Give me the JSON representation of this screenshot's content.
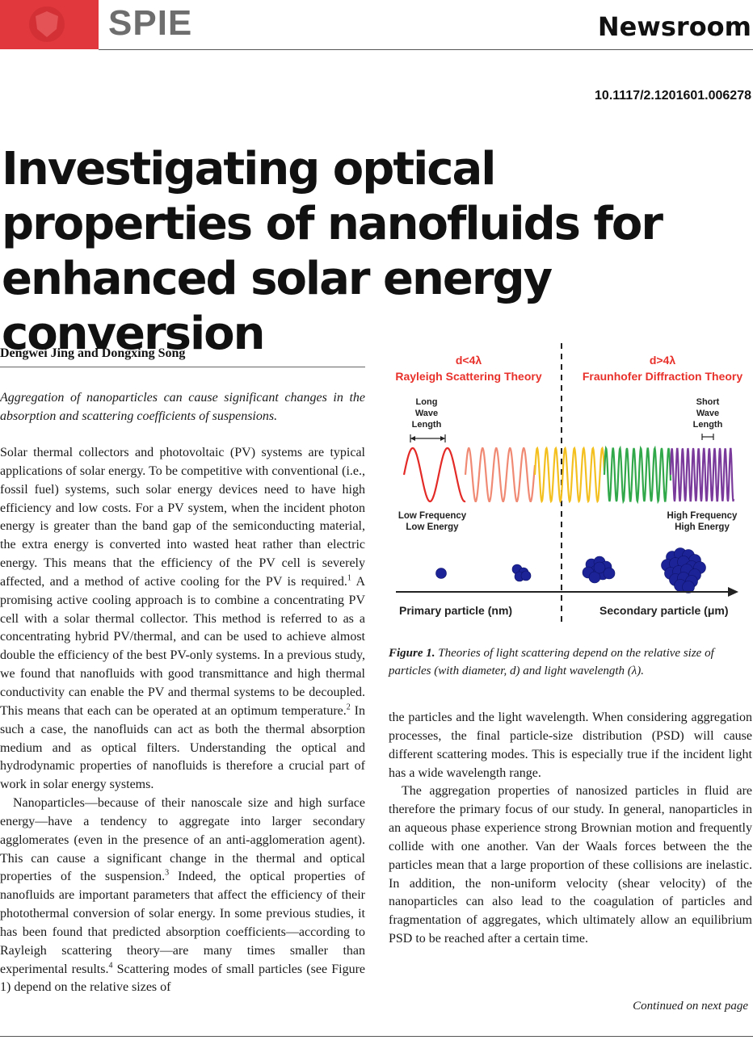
{
  "header": {
    "logo_text": "SPIE",
    "section": "Newsroom",
    "doi": "10.1117/2.1201601.006278",
    "brand_color": "#e0383c"
  },
  "article": {
    "title": "Investigating optical properties of nanofluids for enhanced solar energy conversion",
    "authors": "Dengwei Jing and Dongxing Song",
    "abstract": "Aggregation of nanoparticles can cause significant changes in the absorption and scattering coefficients of suspensions.",
    "left_paragraphs": [
      {
        "parts": [
          "Solar thermal collectors and photovoltaic (PV) systems are typical applications of solar energy. To be competitive with conventional (i.e., fossil fuel) systems, such solar energy devices need to have high efficiency and low costs. For a PV system, when the incident photon energy is greater than the band gap of the semiconducting material, the extra energy is converted into wasted heat rather than electric energy. This means that the efficiency of the PV cell is severely affected, and a method of active cooling for the PV is required.",
          " A promising active cooling approach is to combine a concentrating PV cell with a solar thermal collector. This method is referred to as a concentrating hybrid PV/thermal, and can be used to achieve almost double the efficiency of the best PV-only systems. In a previous study, we found that nanofluids with good transmittance and high thermal conductivity can enable the PV and thermal systems to be decoupled. This means that each can be operated at an optimum temperature.",
          " In such a case, the nanofluids can act as both the thermal absorption medium and as optical filters. Understanding the optical and hydrodynamic properties of nanofluids is therefore a crucial part of work in solar energy systems."
        ],
        "refs": [
          "1",
          "2"
        ]
      },
      {
        "parts": [
          "Nanoparticles—because of their nanoscale size and high surface energy—have a tendency to aggregate into larger secondary agglomerates (even in the presence of an anti-agglomeration agent). This can cause a significant change in the thermal and optical properties of the suspension.",
          " Indeed, the optical properties of nanofluids are important parameters that affect the efficiency of their photothermal conversion of solar energy. In some previous studies, it has been found that predicted absorption coefficients—according to Rayleigh scattering theory—are many times smaller than experimental results.",
          " Scattering modes of small particles (see Figure 1) depend on the relative sizes of"
        ],
        "refs": [
          "3",
          "4"
        ]
      }
    ],
    "right_paragraphs": [
      "the particles and the light wavelength. When considering aggregation processes, the final particle-size distribution (PSD) will cause different scattering modes. This is especially true if the incident light has a wide wavelength range.",
      "The aggregation properties of nanosized particles in fluid are therefore the primary focus of our study. In general, nanoparticles in an aqueous phase experience strong Brownian motion and frequently collide with one another. Van der Waals forces between the the particles mean that a large proportion of these collisions are inelastic. In addition, the non-uniform velocity (shear velocity) of the nanoparticles can also lead to the coagulation of particles and fragmentation of aggregates, which ultimately allow an equilibrium PSD to be reached after a certain time."
    ],
    "continued": "Continued on next page"
  },
  "figure": {
    "label": "Figure 1.",
    "caption": "Theories of light scattering depend on the relative size of particles (with diameter, d) and light wavelength (λ).",
    "left_condition": "d<4λ",
    "left_theory": "Rayleigh Scattering Theory",
    "right_condition": "d>4λ",
    "right_theory": "Fraunhofer Diffraction Theory",
    "long_wave": [
      "Long",
      "Wave",
      "Length"
    ],
    "short_wave": [
      "Short",
      "Wave",
      "Length"
    ],
    "low_freq": [
      "Low Frequency",
      "Low Energy"
    ],
    "high_freq": [
      "High Frequency",
      "High Energy"
    ],
    "primary_axis": "Primary particle (nm)",
    "secondary_axis": "Secondary particle (μm)",
    "heading_color": "#e8312b",
    "particle_color": "#1c2397",
    "wave_colors": [
      "#e32a26",
      "#f08a74",
      "#f3c020",
      "#31a84a",
      "#7a3a9c"
    ]
  }
}
